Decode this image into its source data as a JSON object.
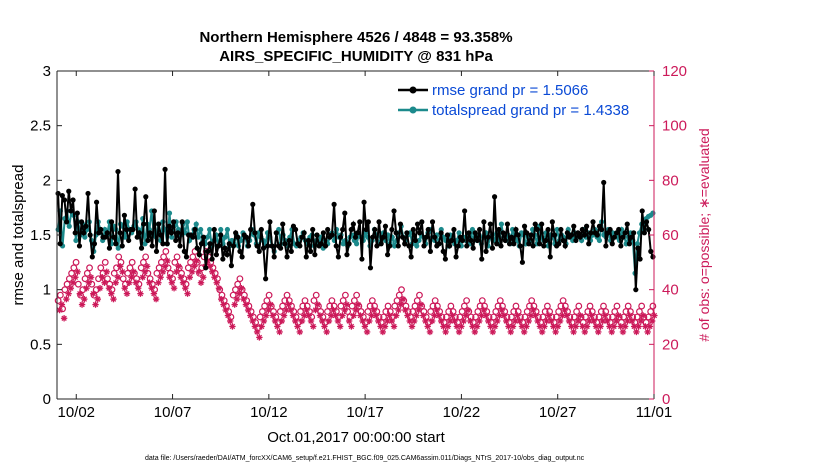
{
  "chart_data": {
    "type": "line",
    "title": "Northern Hemisphere 4526 / 4848 = 93.358%",
    "subtitle": "AIRS_SPECIFIC_HUMIDITY @ 831 hPa",
    "xlabel": "Oct.01,2017 00:00:00 start",
    "ylabel": "rmse and totalspread",
    "ylabel_right": "# of obs: o=possible; ∗=evaluated",
    "footer": "data file: /Users/raeder/DAI/ATM_forcXX/CAM6_setup/f.e21.FHIST_BGC.f09_025.CAM6assim.011/Diags_NTrS_2017-10/obs_diag_output.nc",
    "xlim": [
      0,
      31
    ],
    "ylim": [
      0,
      3
    ],
    "ylim_right": [
      0,
      120
    ],
    "x_ticks": [
      {
        "x": 1,
        "label": "10/02"
      },
      {
        "x": 6,
        "label": "10/07"
      },
      {
        "x": 11,
        "label": "10/12"
      },
      {
        "x": 16,
        "label": "10/17"
      },
      {
        "x": 21,
        "label": "10/22"
      },
      {
        "x": 26,
        "label": "10/27"
      },
      {
        "x": 31,
        "label": "11/01"
      }
    ],
    "y_ticks": [
      "0",
      "0.5",
      "1",
      "1.5",
      "2",
      "2.5",
      "3"
    ],
    "y_ticks_right": [
      "0",
      "20",
      "40",
      "60",
      "80",
      "100",
      "120"
    ],
    "series": [
      {
        "name": "rmse grand pr = 1.5066",
        "color": "#000000",
        "axis": "left",
        "values": [
          1.88,
          1.42,
          1.86,
          1.82,
          1.62,
          1.9,
          1.72,
          1.82,
          1.52,
          1.7,
          1.4,
          1.62,
          1.52,
          1.58,
          1.88,
          1.5,
          1.3,
          1.42,
          1.8,
          1.52,
          1.55,
          1.48,
          1.48,
          1.52,
          1.38,
          1.62,
          1.48,
          1.42,
          2.08,
          1.52,
          1.4,
          1.68,
          1.55,
          1.45,
          1.55,
          1.55,
          1.92,
          1.48,
          1.52,
          1.38,
          1.6,
          1.85,
          1.45,
          1.52,
          1.4,
          1.72,
          1.35,
          1.6,
          1.5,
          1.42,
          2.1,
          1.42,
          1.58,
          1.52,
          1.62,
          1.45,
          1.52,
          1.4,
          1.62,
          1.35,
          1.3,
          1.5,
          1.5,
          1.48,
          1.55,
          1.38,
          1.32,
          1.42,
          1.48,
          1.2,
          1.35,
          1.42,
          1.28,
          1.55,
          1.32,
          1.4,
          1.5,
          1.28,
          1.38,
          1.32,
          1.42,
          1.22,
          1.4,
          1.52,
          1.48,
          1.35,
          1.3,
          1.5,
          1.48,
          1.4,
          1.55,
          1.78,
          1.52,
          1.4,
          1.35,
          1.55,
          1.38,
          1.1,
          1.4,
          1.62,
          1.4,
          1.3,
          1.52,
          1.4,
          1.38,
          1.6,
          1.42,
          1.3,
          1.45,
          1.35,
          1.58,
          1.55,
          1.42,
          1.4,
          1.48,
          1.52,
          1.3,
          1.45,
          1.35,
          1.55,
          1.32,
          1.5,
          1.4,
          1.42,
          1.52,
          1.4,
          1.55,
          1.48,
          1.5,
          1.78,
          1.4,
          1.3,
          1.48,
          1.55,
          1.7,
          1.32,
          1.42,
          1.55,
          1.6,
          1.48,
          1.52,
          1.62,
          1.28,
          1.8,
          1.55,
          1.62,
          1.2,
          1.48,
          1.55,
          1.4,
          1.62,
          1.42,
          1.48,
          1.58,
          1.32,
          1.4,
          1.55,
          1.72,
          1.52,
          1.4,
          1.6,
          1.48,
          1.42,
          1.52,
          1.4,
          1.3,
          1.55,
          1.45,
          1.6,
          1.52,
          1.62,
          1.4,
          1.48,
          1.55,
          1.35,
          1.62,
          1.48,
          1.4,
          1.42,
          1.52,
          1.35,
          1.28,
          1.5,
          1.4,
          1.45,
          1.55,
          1.3,
          1.4,
          1.48,
          1.45,
          1.72,
          1.4,
          1.52,
          1.45,
          1.38,
          1.52,
          1.45,
          1.55,
          1.28,
          1.62,
          1.35,
          1.48,
          1.6,
          1.38,
          1.85,
          1.42,
          1.55,
          1.4,
          1.52,
          1.45,
          1.6,
          1.42,
          1.48,
          1.42,
          1.55,
          1.5,
          1.4,
          1.25,
          1.58,
          1.52,
          1.42,
          1.5,
          1.4,
          1.6,
          1.55,
          1.42,
          1.6,
          1.4,
          1.45,
          1.55,
          1.3,
          1.62,
          1.5,
          1.4,
          1.42,
          1.55,
          1.45,
          1.4,
          1.52,
          1.48,
          1.5,
          1.58,
          1.45,
          1.52,
          1.48,
          1.55,
          1.5,
          1.58,
          1.42,
          1.52,
          1.62,
          1.52,
          1.5,
          1.58,
          1.55,
          1.98,
          1.4,
          1.52,
          1.55,
          1.42,
          1.48,
          1.52,
          1.55,
          1.4,
          1.48,
          1.52,
          1.6,
          1.42,
          1.48,
          1.52,
          1.0,
          1.38,
          1.28,
          1.72,
          1.52,
          1.62,
          1.55,
          1.35,
          1.3
        ]
      },
      {
        "name": "totalspread grand pr = 1.4338",
        "color": "#1c8a8c",
        "axis": "left",
        "values": [
          1.55,
          1.72,
          1.4,
          1.65,
          1.72,
          1.58,
          1.72,
          1.68,
          1.45,
          1.62,
          1.5,
          1.6,
          1.48,
          1.55,
          1.62,
          1.45,
          1.35,
          1.5,
          1.62,
          1.55,
          1.45,
          1.55,
          1.5,
          1.62,
          1.42,
          1.58,
          1.55,
          1.38,
          1.6,
          1.58,
          1.48,
          1.62,
          1.55,
          1.52,
          1.58,
          1.62,
          1.55,
          1.48,
          1.65,
          1.42,
          1.6,
          1.55,
          1.72,
          1.5,
          1.48,
          1.6,
          1.45,
          1.62,
          1.55,
          1.42,
          1.7,
          1.48,
          1.58,
          1.62,
          1.55,
          1.5,
          1.6,
          1.52,
          1.62,
          1.45,
          1.5,
          1.55,
          1.6,
          1.48,
          1.55,
          1.45,
          1.42,
          1.48,
          1.55,
          1.4,
          1.45,
          1.5,
          1.4,
          1.55,
          1.42,
          1.48,
          1.55,
          1.4,
          1.45,
          1.42,
          1.5,
          1.4,
          1.45,
          1.52,
          1.48,
          1.4,
          1.45,
          1.55,
          1.5,
          1.42,
          1.52,
          1.48,
          1.45,
          1.4,
          1.52,
          1.48,
          1.4,
          1.35,
          1.52,
          1.55,
          1.42,
          1.5,
          1.45,
          1.4,
          1.48,
          1.55,
          1.42,
          1.4,
          1.45,
          1.48,
          1.52,
          1.45,
          1.42,
          1.48,
          1.5,
          1.4,
          1.45,
          1.42,
          1.48,
          1.38,
          1.45,
          1.42,
          1.48,
          1.52,
          1.45,
          1.55,
          1.48,
          1.5,
          1.42,
          1.45,
          1.4,
          1.48,
          1.5,
          1.45,
          1.42,
          1.5,
          1.48,
          1.45,
          1.52,
          1.48,
          1.4,
          1.45,
          1.55,
          1.5,
          1.42,
          1.48,
          1.52,
          1.45,
          1.5,
          1.42,
          1.48,
          1.4,
          1.45,
          1.52,
          1.58,
          1.48,
          1.45,
          1.5,
          1.52,
          1.42,
          1.48,
          1.4,
          1.45,
          1.5,
          1.48,
          1.42,
          1.52,
          1.55,
          1.48,
          1.45,
          1.5,
          1.42,
          1.55,
          1.48,
          1.45,
          1.4,
          1.5,
          1.48,
          1.42,
          1.45,
          1.52,
          1.4,
          1.48,
          1.45,
          1.5,
          1.42,
          1.55,
          1.48,
          1.45,
          1.5,
          1.42,
          1.48,
          1.52,
          1.4,
          1.48,
          1.5,
          1.45,
          1.52,
          1.42,
          1.6,
          1.48,
          1.45,
          1.5,
          1.42,
          1.55,
          1.48,
          1.45,
          1.4,
          1.52,
          1.5,
          1.42,
          1.48,
          1.45,
          1.55,
          1.5,
          1.42,
          1.58,
          1.48,
          1.45,
          1.52,
          1.4,
          1.5,
          1.48,
          1.42,
          1.55,
          1.45,
          1.5,
          1.48,
          1.42,
          1.55,
          1.5,
          1.45,
          1.52,
          1.48,
          1.5,
          1.45,
          1.55,
          1.48,
          1.52,
          1.45,
          1.5,
          1.55,
          1.48,
          1.45,
          1.62,
          1.5,
          1.48,
          1.55,
          1.45,
          1.52,
          1.5,
          1.48,
          1.45,
          1.55,
          1.5,
          1.42,
          1.48,
          1.52,
          1.45,
          1.15,
          1.42,
          1.52,
          1.6,
          1.55,
          1.65,
          1.67,
          1.68,
          1.7
        ]
      }
    ],
    "obs_possible": {
      "name": "# of obs possible",
      "marker": "o",
      "color": "#cc1a5a",
      "axis": "right",
      "values": [
        36,
        38,
        33,
        40,
        42,
        44,
        46,
        48,
        50,
        42,
        38,
        40,
        44,
        46,
        48,
        42,
        38,
        40,
        44,
        48,
        46,
        50,
        44,
        42,
        40,
        46,
        48,
        52,
        50,
        44,
        42,
        46,
        48,
        50,
        46,
        44,
        42,
        48,
        50,
        52,
        46,
        44,
        42,
        40,
        46,
        48,
        50,
        52,
        54,
        48,
        46,
        44,
        50,
        52,
        48,
        46,
        44,
        42,
        48,
        50,
        52,
        54,
        50,
        46,
        48,
        52,
        54,
        52,
        50,
        48,
        46,
        44,
        40,
        38,
        36,
        34,
        32,
        30,
        38,
        40,
        42,
        44,
        40,
        38,
        36,
        34,
        32,
        30,
        28,
        26,
        30,
        32,
        34,
        36,
        38,
        34,
        32,
        30,
        28,
        32,
        34,
        36,
        38,
        36,
        34,
        32,
        30,
        28,
        32,
        34,
        36,
        34,
        32,
        30,
        36,
        38,
        34,
        32,
        30,
        28,
        32,
        34,
        36,
        34,
        32,
        30,
        34,
        36,
        38,
        32,
        30,
        34,
        36,
        38,
        34,
        32,
        30,
        28,
        32,
        34,
        36,
        34,
        32,
        30,
        28,
        30,
        32,
        34,
        32,
        30,
        34,
        36,
        38,
        40,
        36,
        34,
        32,
        30,
        32,
        34,
        36,
        38,
        34,
        32,
        30,
        28,
        32,
        34,
        36,
        34,
        32,
        30,
        28,
        30,
        32,
        34,
        32,
        30,
        28,
        30,
        32,
        34,
        36,
        32,
        30,
        28,
        30,
        32,
        34,
        36,
        34,
        32,
        30,
        28,
        30,
        32,
        34,
        36,
        34,
        32,
        30,
        28,
        30,
        32,
        34,
        32,
        30,
        28,
        30,
        32,
        34,
        36,
        34,
        32,
        30,
        28,
        30,
        32,
        34,
        32,
        30,
        28,
        30,
        32,
        34,
        36,
        34,
        32,
        30,
        28,
        30,
        32,
        34,
        30,
        28,
        30,
        32,
        34,
        32,
        30,
        28,
        30,
        32,
        34,
        32,
        30,
        28,
        30,
        32,
        34,
        30,
        28,
        30,
        32,
        34,
        32,
        30,
        28,
        30,
        32,
        34,
        30,
        28,
        30,
        32,
        34
      ]
    },
    "obs_evaluated": {
      "name": "# of obs evaluated",
      "marker": "*",
      "color": "#cc1a5a",
      "axis": "right",
      "values": [
        34,
        36,
        31,
        38,
        40,
        42,
        44,
        46,
        48,
        40,
        36,
        38,
        42,
        44,
        46,
        40,
        36,
        38,
        42,
        46,
        44,
        48,
        42,
        40,
        38,
        44,
        46,
        50,
        48,
        42,
        40,
        44,
        46,
        48,
        44,
        42,
        40,
        46,
        48,
        50,
        44,
        42,
        40,
        38,
        44,
        46,
        48,
        50,
        52,
        46,
        44,
        42,
        48,
        50,
        46,
        44,
        42,
        40,
        46,
        48,
        50,
        52,
        48,
        44,
        46,
        50,
        52,
        50,
        48,
        46,
        44,
        42,
        38,
        36,
        34,
        32,
        30,
        28,
        36,
        38,
        40,
        42,
        38,
        36,
        34,
        32,
        30,
        28,
        26,
        24,
        28,
        30,
        32,
        34,
        36,
        32,
        30,
        28,
        26,
        30,
        32,
        34,
        36,
        34,
        32,
        30,
        28,
        26,
        30,
        32,
        34,
        32,
        30,
        28,
        34,
        36,
        32,
        30,
        28,
        26,
        30,
        32,
        34,
        32,
        30,
        28,
        32,
        34,
        36,
        30,
        28,
        32,
        34,
        36,
        32,
        30,
        28,
        26,
        30,
        32,
        34,
        32,
        30,
        28,
        26,
        28,
        30,
        32,
        30,
        28,
        32,
        34,
        36,
        38,
        34,
        32,
        30,
        28,
        30,
        32,
        34,
        36,
        32,
        30,
        28,
        26,
        30,
        32,
        34,
        32,
        30,
        28,
        26,
        28,
        30,
        32,
        30,
        28,
        26,
        28,
        30,
        32,
        34,
        30,
        28,
        26,
        28,
        30,
        32,
        34,
        32,
        30,
        28,
        26,
        28,
        30,
        32,
        34,
        32,
        30,
        28,
        26,
        28,
        30,
        32,
        30,
        28,
        26,
        28,
        30,
        32,
        34,
        32,
        30,
        28,
        26,
        28,
        30,
        32,
        30,
        28,
        26,
        28,
        30,
        32,
        34,
        32,
        30,
        28,
        26,
        28,
        30,
        32,
        28,
        26,
        28,
        30,
        32,
        30,
        28,
        26,
        28,
        30,
        32,
        30,
        28,
        26,
        28,
        30,
        32,
        28,
        26,
        28,
        30,
        32,
        30,
        28,
        26,
        28,
        30,
        32,
        28,
        26,
        28,
        30,
        32
      ]
    }
  }
}
